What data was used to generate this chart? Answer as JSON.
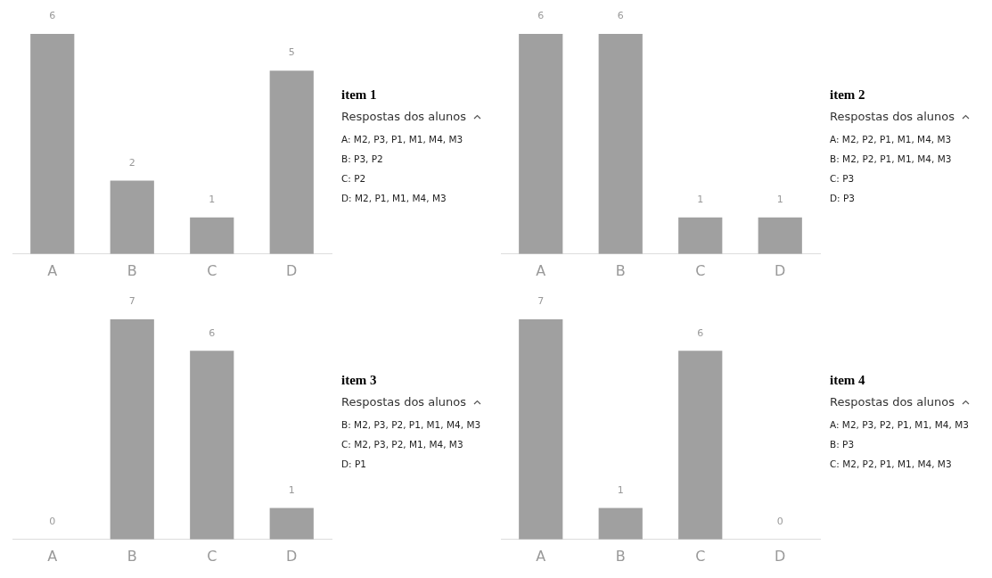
{
  "chart_data": [
    {
      "type": "bar",
      "categories": [
        "A",
        "B",
        "C",
        "D"
      ],
      "values": [
        6,
        2,
        1,
        5
      ],
      "color": "#a0a0a0",
      "data_labels": true,
      "grid": false,
      "tick_labels": "x",
      "legend": false,
      "legend_title": "Respostas dos alunos",
      "annotations": [
        "item 1",
        "A: M2, P3, P1, M1, M4, M3",
        "B: P3, P2",
        "C: P2",
        "D: M2, P1, M1, M4, M3"
      ]
    },
    {
      "type": "bar",
      "categories": [
        "A",
        "B",
        "C",
        "D"
      ],
      "values": [
        6,
        6,
        1,
        1
      ],
      "color": "#a0a0a0",
      "data_labels": true,
      "grid": false,
      "tick_labels": "x",
      "legend": false,
      "legend_title": "Respostas dos alunos",
      "annotations": [
        "item 2",
        "A: M2, P2, P1, M1, M4, M3",
        "B: M2, P2, P1, M1, M4, M3",
        "C: P3",
        "D: P3"
      ]
    },
    {
      "type": "bar",
      "categories": [
        "A",
        "B",
        "C",
        "D"
      ],
      "values": [
        0,
        7,
        6,
        1
      ],
      "color": "#a0a0a0",
      "data_labels": true,
      "grid": false,
      "tick_labels": "x",
      "legend": false,
      "legend_title": "Respostas dos alunos",
      "annotations": [
        "item 3",
        "B: M2, P3, P2, P1, M1, M4, M3",
        "C: M2, P3, P2, M1, M4, M3",
        "D: P1"
      ]
    },
    {
      "type": "bar",
      "categories": [
        "A",
        "B",
        "C",
        "D"
      ],
      "values": [
        7,
        1,
        6,
        0
      ],
      "color": "#a0a0a0",
      "data_labels": true,
      "grid": false,
      "tick_labels": "x",
      "legend": false,
      "legend_title": "Respostas dos alunos",
      "annotations": [
        "item 4",
        "A: M2, P3, P2, P1, M1, M4, M3",
        "B: P3",
        "C: M2, P2, P1, M1, M4, M3"
      ]
    }
  ]
}
